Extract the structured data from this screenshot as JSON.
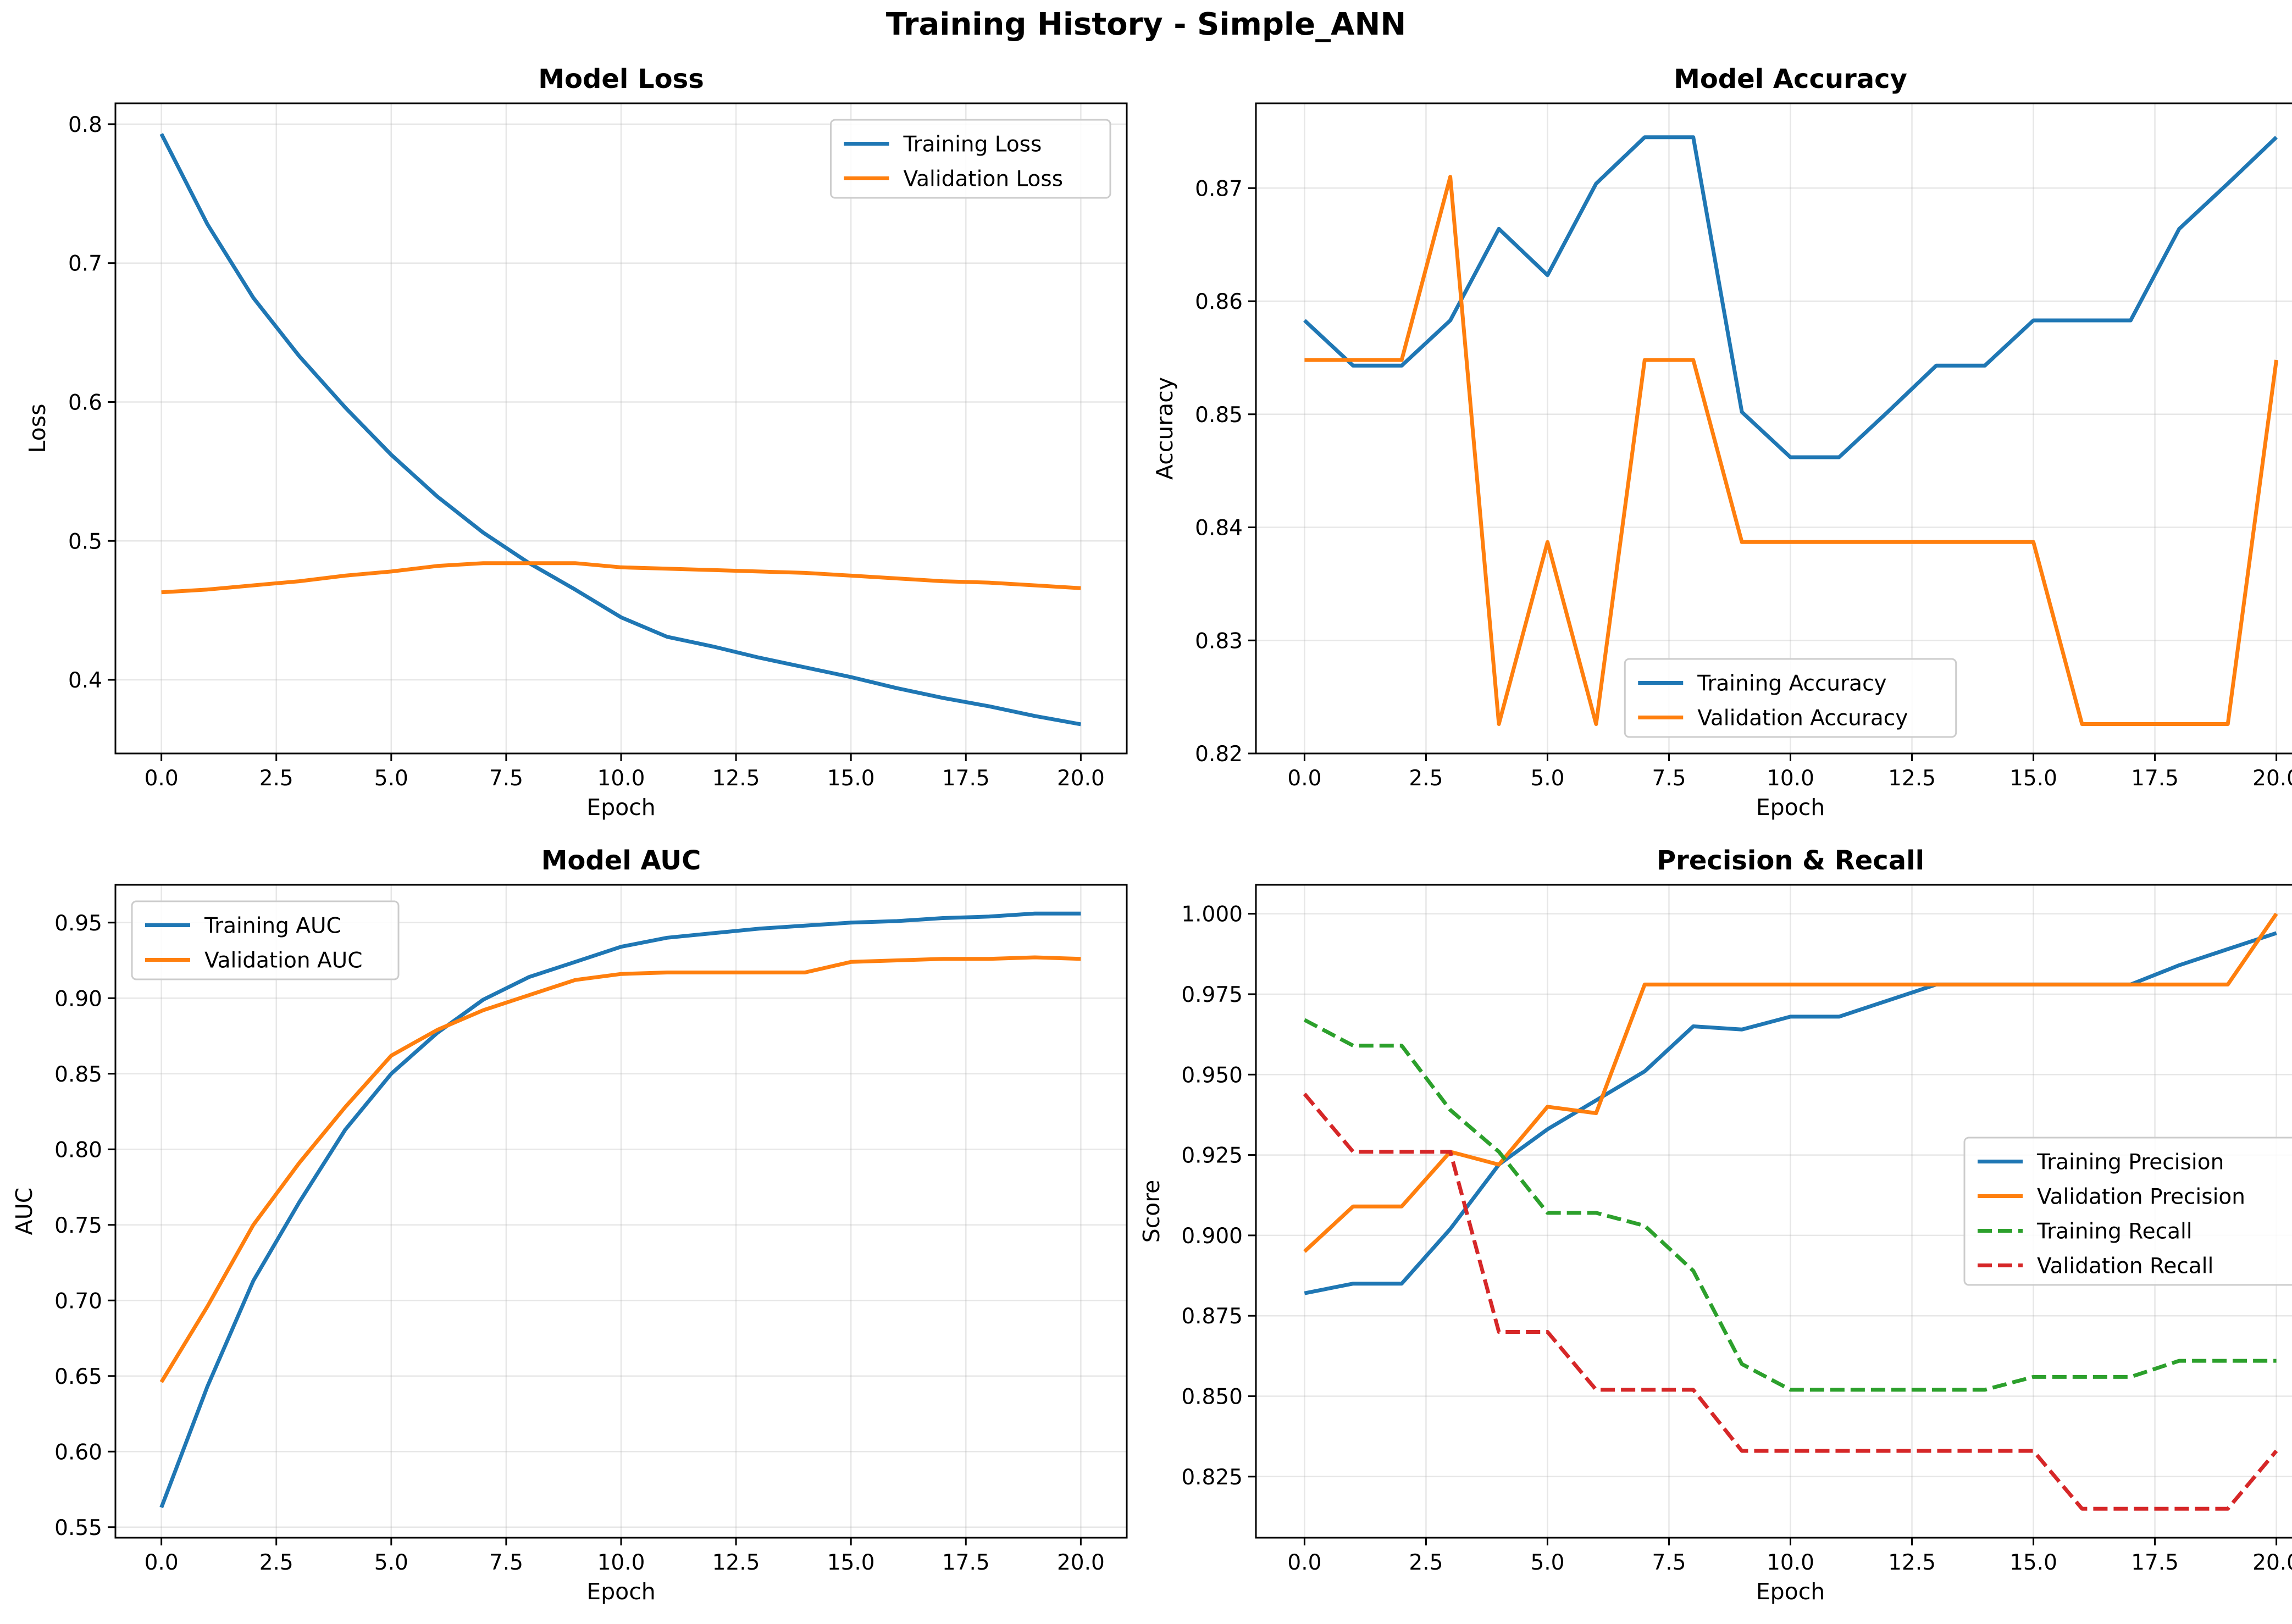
{
  "figure_title": "Training History - Simple_ANN",
  "chart_data": [
    {
      "type": "line",
      "title": "Model Loss",
      "xlabel": "Epoch",
      "ylabel": "Loss",
      "xlim": [
        -1,
        21
      ],
      "ylim": [
        0.347,
        0.815
      ],
      "xticks": [
        0,
        2.5,
        5,
        7.5,
        10,
        12.5,
        15,
        17.5,
        20
      ],
      "yticks": [
        0.4,
        0.5,
        0.6,
        0.7,
        0.8
      ],
      "tick_decimals": 1,
      "grid": true,
      "legend": "top-right",
      "x": [
        0,
        1,
        2,
        3,
        4,
        5,
        6,
        7,
        8,
        9,
        10,
        11,
        12,
        13,
        14,
        15,
        16,
        17,
        18,
        19,
        20
      ],
      "series": [
        {
          "name": "Training Loss",
          "color": "#1f77b4",
          "dash": "solid",
          "values": [
            0.793,
            0.728,
            0.675,
            0.633,
            0.596,
            0.562,
            0.532,
            0.506,
            0.484,
            0.465,
            0.445,
            0.431,
            0.424,
            0.416,
            0.409,
            0.402,
            0.394,
            0.387,
            0.381,
            0.374,
            0.368
          ]
        },
        {
          "name": "Validation Loss",
          "color": "#ff7f0e",
          "dash": "solid",
          "values": [
            0.463,
            0.465,
            0.468,
            0.471,
            0.475,
            0.478,
            0.482,
            0.484,
            0.484,
            0.484,
            0.481,
            0.48,
            0.479,
            0.478,
            0.477,
            0.475,
            0.473,
            0.471,
            0.47,
            0.468,
            0.466
          ]
        }
      ]
    },
    {
      "type": "line",
      "title": "Model Accuracy",
      "xlabel": "Epoch",
      "ylabel": "Accuracy",
      "xlim": [
        -1,
        21
      ],
      "ylim": [
        0.82,
        0.8775
      ],
      "xticks": [
        0,
        2.5,
        5,
        7.5,
        10,
        12.5,
        15,
        17.5,
        20
      ],
      "yticks": [
        0.82,
        0.83,
        0.84,
        0.85,
        0.86,
        0.87
      ],
      "tick_decimals": 2,
      "grid": true,
      "legend": "bottom-center",
      "x": [
        0,
        1,
        2,
        3,
        4,
        5,
        6,
        7,
        8,
        9,
        10,
        11,
        12,
        13,
        14,
        15,
        16,
        17,
        18,
        19,
        20
      ],
      "series": [
        {
          "name": "Training Accuracy",
          "color": "#1f77b4",
          "dash": "solid",
          "values": [
            0.8583,
            0.8543,
            0.8543,
            0.8583,
            0.8664,
            0.8623,
            0.8704,
            0.8745,
            0.8745,
            0.8502,
            0.8462,
            0.8462,
            0.8502,
            0.8543,
            0.8543,
            0.8583,
            0.8583,
            0.8583,
            0.8664,
            0.8704,
            0.8745
          ]
        },
        {
          "name": "Validation Accuracy",
          "color": "#ff7f0e",
          "dash": "solid",
          "values": [
            0.8548,
            0.8548,
            0.8548,
            0.871,
            0.8226,
            0.8387,
            0.8226,
            0.8548,
            0.8548,
            0.8387,
            0.8387,
            0.8387,
            0.8387,
            0.8387,
            0.8387,
            0.8387,
            0.8226,
            0.8226,
            0.8226,
            0.8226,
            0.8548
          ]
        }
      ]
    },
    {
      "type": "line",
      "title": "Model AUC",
      "xlabel": "Epoch",
      "ylabel": "AUC",
      "xlim": [
        -1,
        21
      ],
      "ylim": [
        0.543,
        0.975
      ],
      "xticks": [
        0,
        2.5,
        5,
        7.5,
        10,
        12.5,
        15,
        17.5,
        20
      ],
      "yticks": [
        0.55,
        0.6,
        0.65,
        0.7,
        0.75,
        0.8,
        0.85,
        0.9,
        0.95
      ],
      "tick_decimals": 2,
      "grid": true,
      "legend": "top-left",
      "x": [
        0,
        1,
        2,
        3,
        4,
        5,
        6,
        7,
        8,
        9,
        10,
        11,
        12,
        13,
        14,
        15,
        16,
        17,
        18,
        19,
        20
      ],
      "series": [
        {
          "name": "Training AUC",
          "color": "#1f77b4",
          "dash": "solid",
          "values": [
            0.563,
            0.643,
            0.713,
            0.765,
            0.813,
            0.85,
            0.877,
            0.899,
            0.914,
            0.924,
            0.934,
            0.94,
            0.943,
            0.946,
            0.948,
            0.95,
            0.951,
            0.953,
            0.954,
            0.956,
            0.956
          ]
        },
        {
          "name": "Validation AUC",
          "color": "#ff7f0e",
          "dash": "solid",
          "values": [
            0.646,
            0.696,
            0.75,
            0.791,
            0.828,
            0.862,
            0.879,
            0.892,
            0.902,
            0.912,
            0.916,
            0.917,
            0.917,
            0.917,
            0.917,
            0.924,
            0.925,
            0.926,
            0.926,
            0.927,
            0.926
          ]
        }
      ]
    },
    {
      "type": "line",
      "title": "Precision & Recall",
      "xlabel": "Epoch",
      "ylabel": "Score",
      "xlim": [
        -1,
        21
      ],
      "ylim": [
        0.806,
        1.009
      ],
      "xticks": [
        0,
        2.5,
        5,
        7.5,
        10,
        12.5,
        15,
        17.5,
        20
      ],
      "yticks": [
        0.825,
        0.85,
        0.875,
        0.9,
        0.925,
        0.95,
        0.975,
        1.0
      ],
      "tick_decimals": 3,
      "grid": true,
      "legend": "center-right",
      "x": [
        0,
        1,
        2,
        3,
        4,
        5,
        6,
        7,
        8,
        9,
        10,
        11,
        12,
        13,
        14,
        15,
        16,
        17,
        18,
        19,
        20
      ],
      "series": [
        {
          "name": "Training Precision",
          "color": "#1f77b4",
          "dash": "solid",
          "values": [
            0.882,
            0.885,
            0.885,
            0.902,
            0.922,
            0.933,
            0.942,
            0.951,
            0.965,
            0.964,
            0.968,
            0.968,
            0.973,
            0.978,
            0.978,
            0.978,
            0.978,
            0.978,
            0.984,
            0.989,
            0.994
          ]
        },
        {
          "name": "Validation Precision",
          "color": "#ff7f0e",
          "dash": "solid",
          "values": [
            0.895,
            0.909,
            0.909,
            0.926,
            0.922,
            0.94,
            0.938,
            0.978,
            0.978,
            0.978,
            0.978,
            0.978,
            0.978,
            0.978,
            0.978,
            0.978,
            0.978,
            0.978,
            0.978,
            0.978,
            1.0
          ]
        },
        {
          "name": "Training Recall",
          "color": "#2ca02c",
          "dash": "dashed",
          "values": [
            0.967,
            0.959,
            0.959,
            0.939,
            0.926,
            0.907,
            0.907,
            0.903,
            0.889,
            0.86,
            0.852,
            0.852,
            0.852,
            0.852,
            0.852,
            0.856,
            0.856,
            0.856,
            0.861,
            0.861,
            0.861
          ]
        },
        {
          "name": "Validation Recall",
          "color": "#d62728",
          "dash": "dashed",
          "values": [
            0.944,
            0.926,
            0.926,
            0.926,
            0.87,
            0.87,
            0.852,
            0.852,
            0.852,
            0.833,
            0.833,
            0.833,
            0.833,
            0.833,
            0.833,
            0.833,
            0.815,
            0.815,
            0.815,
            0.815,
            0.833
          ]
        }
      ]
    }
  ]
}
